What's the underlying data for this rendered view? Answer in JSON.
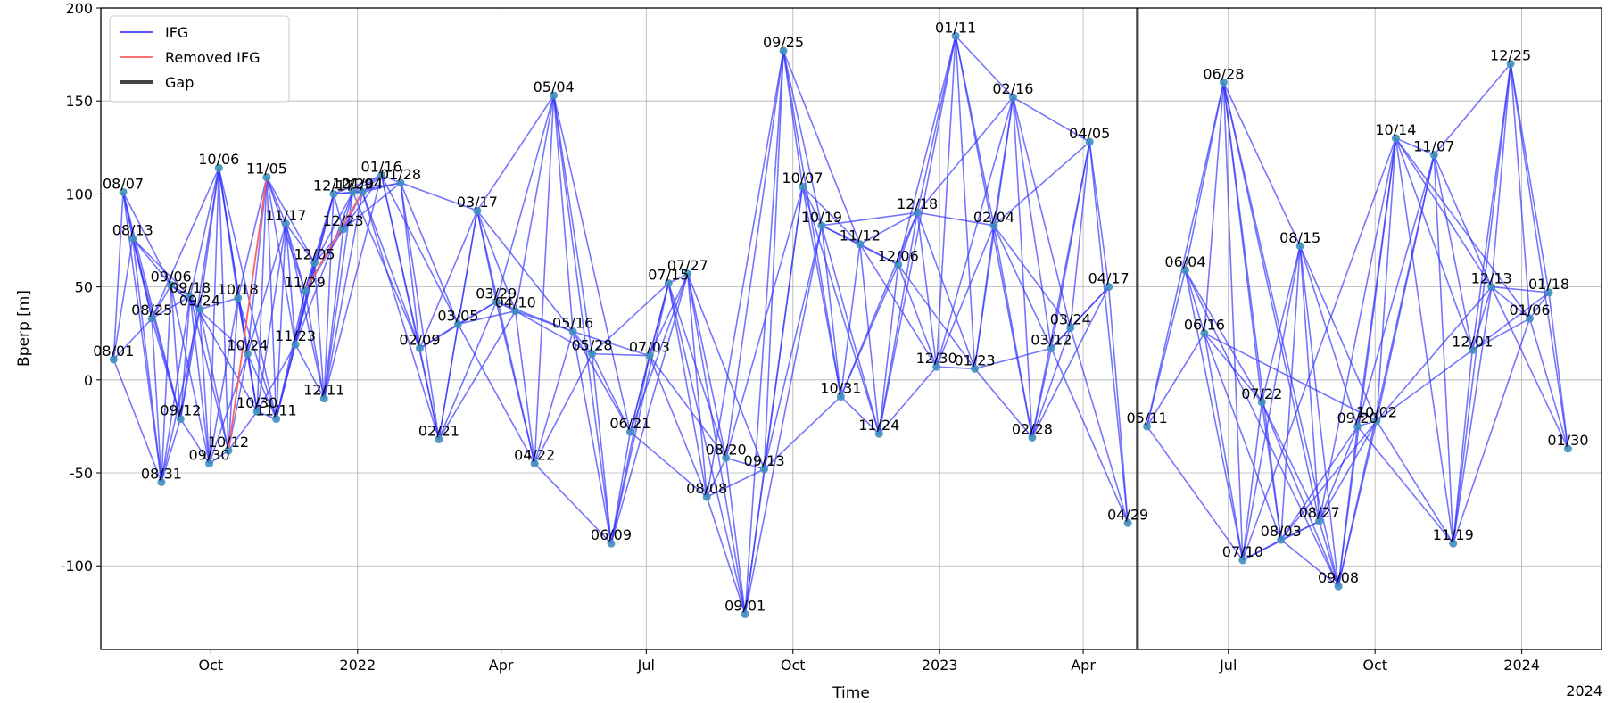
{
  "chart_data": {
    "type": "line",
    "xlabel": "Time",
    "ylabel": "Bperp [m]",
    "ylim": [
      -145,
      200
    ],
    "xlim": [
      "2021-07-24",
      "2024-02-20"
    ],
    "grid": true,
    "legend_position": "top-left",
    "legend": [
      {
        "label": "IFG",
        "color": "#4040ff",
        "style": "line"
      },
      {
        "label": "Removed IFG",
        "color": "#ff6060",
        "style": "line"
      },
      {
        "label": "Gap",
        "color": "#444444",
        "style": "thick-line"
      }
    ],
    "y_ticks": [
      200,
      150,
      100,
      50,
      0,
      -50,
      -100
    ],
    "x_ticks": [
      {
        "label": "Oct",
        "date": "2021-10-01"
      },
      {
        "label": "2022",
        "date": "2022-01-01"
      },
      {
        "label": "Apr",
        "date": "2022-04-01"
      },
      {
        "label": "Jul",
        "date": "2022-07-01"
      },
      {
        "label": "Oct",
        "date": "2022-10-01"
      },
      {
        "label": "2023",
        "date": "2023-01-01"
      },
      {
        "label": "Apr",
        "date": "2023-04-01"
      },
      {
        "label": "Jul",
        "date": "2023-07-01"
      },
      {
        "label": "Oct",
        "date": "2023-10-01"
      },
      {
        "label": "2024",
        "date": "2024-01-01"
      }
    ],
    "x_offset_label": "2024",
    "gap_date": "2023-05-05",
    "point_color": "#3f8fbf",
    "line_color": "#3333ff",
    "removed_color": "#ff6060",
    "acquisitions": [
      {
        "label": "08/01",
        "date": "2021-08-01",
        "bperp": 11
      },
      {
        "label": "08/07",
        "date": "2021-08-07",
        "bperp": 101
      },
      {
        "label": "08/13",
        "date": "2021-08-13",
        "bperp": 76
      },
      {
        "label": "08/25",
        "date": "2021-08-25",
        "bperp": 33
      },
      {
        "label": "08/31",
        "date": "2021-08-31",
        "bperp": -55
      },
      {
        "label": "09/06",
        "date": "2021-09-06",
        "bperp": 51
      },
      {
        "label": "09/12",
        "date": "2021-09-12",
        "bperp": -21
      },
      {
        "label": "09/18",
        "date": "2021-09-18",
        "bperp": 45
      },
      {
        "label": "09/24",
        "date": "2021-09-24",
        "bperp": 38
      },
      {
        "label": "09/30",
        "date": "2021-09-30",
        "bperp": -45
      },
      {
        "label": "10/06",
        "date": "2021-10-06",
        "bperp": 114
      },
      {
        "label": "10/12",
        "date": "2021-10-12",
        "bperp": -38
      },
      {
        "label": "10/18",
        "date": "2021-10-18",
        "bperp": 44
      },
      {
        "label": "10/24",
        "date": "2021-10-24",
        "bperp": 14
      },
      {
        "label": "10/30",
        "date": "2021-10-30",
        "bperp": -17
      },
      {
        "label": "11/05",
        "date": "2021-11-05",
        "bperp": 109
      },
      {
        "label": "11/11",
        "date": "2021-11-11",
        "bperp": -21
      },
      {
        "label": "11/17",
        "date": "2021-11-17",
        "bperp": 84
      },
      {
        "label": "11/23",
        "date": "2021-11-23",
        "bperp": 19
      },
      {
        "label": "11/29",
        "date": "2021-11-29",
        "bperp": 48
      },
      {
        "label": "12/05",
        "date": "2021-12-05",
        "bperp": 63
      },
      {
        "label": "12/11",
        "date": "2021-12-11",
        "bperp": -10
      },
      {
        "label": "12/17",
        "date": "2021-12-17",
        "bperp": 100
      },
      {
        "label": "12/23",
        "date": "2021-12-23",
        "bperp": 81
      },
      {
        "label": "12/29",
        "date": "2021-12-29",
        "bperp": 101
      },
      {
        "label": "01/04",
        "date": "2022-01-04",
        "bperp": 101
      },
      {
        "label": "01/16",
        "date": "2022-01-16",
        "bperp": 110
      },
      {
        "label": "01/28",
        "date": "2022-01-28",
        "bperp": 106
      },
      {
        "label": "02/09",
        "date": "2022-02-09",
        "bperp": 17
      },
      {
        "label": "02/21",
        "date": "2022-02-21",
        "bperp": -32
      },
      {
        "label": "03/05",
        "date": "2022-03-05",
        "bperp": 30
      },
      {
        "label": "03/17",
        "date": "2022-03-17",
        "bperp": 91
      },
      {
        "label": "03/29",
        "date": "2022-03-29",
        "bperp": 42
      },
      {
        "label": "04/10",
        "date": "2022-04-10",
        "bperp": 37
      },
      {
        "label": "04/22",
        "date": "2022-04-22",
        "bperp": -45
      },
      {
        "label": "05/04",
        "date": "2022-05-04",
        "bperp": 153
      },
      {
        "label": "05/16",
        "date": "2022-05-16",
        "bperp": 26
      },
      {
        "label": "05/28",
        "date": "2022-05-28",
        "bperp": 14
      },
      {
        "label": "06/09",
        "date": "2022-06-09",
        "bperp": -88
      },
      {
        "label": "06/21",
        "date": "2022-06-21",
        "bperp": -28
      },
      {
        "label": "07/03",
        "date": "2022-07-03",
        "bperp": 13
      },
      {
        "label": "07/15",
        "date": "2022-07-15",
        "bperp": 52
      },
      {
        "label": "07/27",
        "date": "2022-07-27",
        "bperp": 57
      },
      {
        "label": "08/08",
        "date": "2022-08-08",
        "bperp": -63
      },
      {
        "label": "08/20",
        "date": "2022-08-20",
        "bperp": -42
      },
      {
        "label": "09/01",
        "date": "2022-09-01",
        "bperp": -126
      },
      {
        "label": "09/13",
        "date": "2022-09-13",
        "bperp": -48
      },
      {
        "label": "09/25",
        "date": "2022-09-25",
        "bperp": 177
      },
      {
        "label": "10/07",
        "date": "2022-10-07",
        "bperp": 104
      },
      {
        "label": "10/19",
        "date": "2022-10-19",
        "bperp": 83
      },
      {
        "label": "10/31",
        "date": "2022-10-31",
        "bperp": -9
      },
      {
        "label": "11/12",
        "date": "2022-11-12",
        "bperp": 73
      },
      {
        "label": "11/24",
        "date": "2022-11-24",
        "bperp": -29
      },
      {
        "label": "12/06",
        "date": "2022-12-06",
        "bperp": 62
      },
      {
        "label": "12/18",
        "date": "2022-12-18",
        "bperp": 90
      },
      {
        "label": "12/30",
        "date": "2022-12-30",
        "bperp": 7
      },
      {
        "label": "01/11",
        "date": "2023-01-11",
        "bperp": 185
      },
      {
        "label": "01/23",
        "date": "2023-01-23",
        "bperp": 6
      },
      {
        "label": "02/04",
        "date": "2023-02-04",
        "bperp": 83
      },
      {
        "label": "02/16",
        "date": "2023-02-16",
        "bperp": 152
      },
      {
        "label": "02/28",
        "date": "2023-02-28",
        "bperp": -31
      },
      {
        "label": "03/12",
        "date": "2023-03-12",
        "bperp": 17
      },
      {
        "label": "03/24",
        "date": "2023-03-24",
        "bperp": 28
      },
      {
        "label": "04/05",
        "date": "2023-04-05",
        "bperp": 128
      },
      {
        "label": "04/17",
        "date": "2023-04-17",
        "bperp": 50
      },
      {
        "label": "04/29",
        "date": "2023-04-29",
        "bperp": -77
      },
      {
        "label": "05/11",
        "date": "2023-05-11",
        "bperp": -25
      },
      {
        "label": "06/04",
        "date": "2023-06-04",
        "bperp": 59
      },
      {
        "label": "06/16",
        "date": "2023-06-16",
        "bperp": 25
      },
      {
        "label": "06/28",
        "date": "2023-06-28",
        "bperp": 160
      },
      {
        "label": "07/10",
        "date": "2023-07-10",
        "bperp": -97
      },
      {
        "label": "07/22",
        "date": "2023-07-22",
        "bperp": -12
      },
      {
        "label": "08/03",
        "date": "2023-08-03",
        "bperp": -86
      },
      {
        "label": "08/15",
        "date": "2023-08-15",
        "bperp": 72
      },
      {
        "label": "08/27",
        "date": "2023-08-27",
        "bperp": -76
      },
      {
        "label": "09/08",
        "date": "2023-09-08",
        "bperp": -111
      },
      {
        "label": "09/20",
        "date": "2023-09-20",
        "bperp": -25
      },
      {
        "label": "10/02",
        "date": "2023-10-02",
        "bperp": -22
      },
      {
        "label": "10/14",
        "date": "2023-10-14",
        "bperp": 130
      },
      {
        "label": "11/07",
        "date": "2023-11-07",
        "bperp": 121
      },
      {
        "label": "11/19",
        "date": "2023-11-19",
        "bperp": -88
      },
      {
        "label": "12/01",
        "date": "2023-12-01",
        "bperp": 16
      },
      {
        "label": "12/13",
        "date": "2023-12-13",
        "bperp": 50
      },
      {
        "label": "12/25",
        "date": "2023-12-25",
        "bperp": 170
      },
      {
        "label": "01/06",
        "date": "2024-01-06",
        "bperp": 33
      },
      {
        "label": "01/18",
        "date": "2024-01-18",
        "bperp": 47
      },
      {
        "label": "01/30",
        "date": "2024-01-30",
        "bperp": -37
      }
    ],
    "removed_ifgs": [
      [
        "10/12",
        "11/05"
      ],
      [
        "11/29",
        "01/04"
      ]
    ],
    "extra_ifgs": [
      [
        "08/07",
        "09/06"
      ],
      [
        "08/07",
        "09/12"
      ],
      [
        "08/13",
        "09/18"
      ],
      [
        "08/25",
        "10/06"
      ],
      [
        "09/06",
        "10/24"
      ],
      [
        "09/12",
        "10/06"
      ],
      [
        "09/18",
        "10/30"
      ],
      [
        "10/06",
        "10/30"
      ],
      [
        "10/06",
        "11/11"
      ],
      [
        "10/24",
        "11/17"
      ],
      [
        "11/05",
        "11/23"
      ],
      [
        "11/05",
        "12/05"
      ],
      [
        "11/11",
        "12/17"
      ],
      [
        "11/23",
        "12/29"
      ],
      [
        "12/11",
        "01/16"
      ],
      [
        "12/23",
        "01/28"
      ],
      [
        "01/04",
        "02/21"
      ],
      [
        "01/16",
        "03/05"
      ],
      [
        "02/09",
        "03/17"
      ],
      [
        "02/21",
        "03/29"
      ],
      [
        "03/17",
        "05/16"
      ],
      [
        "03/29",
        "05/04"
      ],
      [
        "04/10",
        "05/28"
      ],
      [
        "04/22",
        "05/04"
      ],
      [
        "05/04",
        "06/09"
      ],
      [
        "05/16",
        "07/03"
      ],
      [
        "05/28",
        "07/15"
      ],
      [
        "06/21",
        "07/27"
      ],
      [
        "06/09",
        "07/27"
      ],
      [
        "07/03",
        "08/20"
      ],
      [
        "07/15",
        "09/01"
      ],
      [
        "07/27",
        "09/13"
      ],
      [
        "08/08",
        "09/25"
      ],
      [
        "08/20",
        "10/07"
      ],
      [
        "09/01",
        "10/19"
      ],
      [
        "09/13",
        "10/31"
      ],
      [
        "09/25",
        "11/12"
      ],
      [
        "10/07",
        "11/24"
      ],
      [
        "10/19",
        "12/18"
      ],
      [
        "10/31",
        "12/18"
      ],
      [
        "11/12",
        "12/30"
      ],
      [
        "11/24",
        "01/11"
      ],
      [
        "12/06",
        "01/23"
      ],
      [
        "12/18",
        "02/04"
      ],
      [
        "12/30",
        "02/16"
      ],
      [
        "01/11",
        "02/28"
      ],
      [
        "01/23",
        "03/12"
      ],
      [
        "02/04",
        "04/05"
      ],
      [
        "02/16",
        "03/24"
      ],
      [
        "02/28",
        "04/17"
      ],
      [
        "03/12",
        "04/05"
      ],
      [
        "03/24",
        "04/29"
      ],
      [
        "04/05",
        "04/29"
      ],
      [
        "12/18",
        "02/16"
      ],
      [
        "12/06",
        "01/11"
      ],
      [
        "10/07",
        "11/12"
      ],
      [
        "05/11",
        "06/28"
      ],
      [
        "06/04",
        "07/22"
      ],
      [
        "06/16",
        "08/03"
      ],
      [
        "06/28",
        "08/27"
      ],
      [
        "06/28",
        "09/08"
      ],
      [
        "06/04",
        "09/08"
      ],
      [
        "07/10",
        "08/15"
      ],
      [
        "07/22",
        "09/08"
      ],
      [
        "08/03",
        "10/02"
      ],
      [
        "08/15",
        "09/20"
      ],
      [
        "08/27",
        "10/14"
      ],
      [
        "09/08",
        "11/07"
      ],
      [
        "09/20",
        "11/19"
      ],
      [
        "10/02",
        "12/13"
      ],
      [
        "10/14",
        "12/01"
      ],
      [
        "11/07",
        "12/25"
      ],
      [
        "11/19",
        "12/25"
      ],
      [
        "12/01",
        "01/18"
      ],
      [
        "12/13",
        "01/30"
      ],
      [
        "12/25",
        "01/30"
      ],
      [
        "10/14",
        "01/06"
      ],
      [
        "07/10",
        "10/14"
      ],
      [
        "06/16",
        "10/02"
      ],
      [
        "06/28",
        "08/03"
      ]
    ]
  }
}
